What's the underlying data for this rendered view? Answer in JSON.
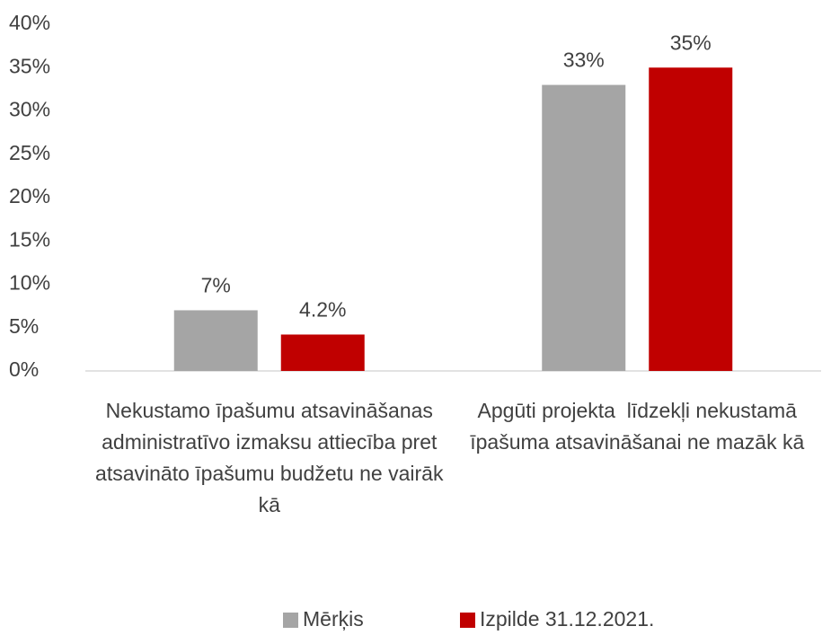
{
  "chart_data": {
    "type": "bar",
    "categories": [
      "Nekustamo īpašumu atsavināšanas administratīvo izmaksu attiecība pret atsavināto īpašumu budžetu ne vairāk kā",
      "Apgūti projekta  līdzekļi nekustamā īpašuma atsavināšanai ne mazāk kā"
    ],
    "series": [
      {
        "name": "Mērķis",
        "color": "#a5a5a5",
        "values": [
          7,
          33
        ],
        "value_labels": [
          "7%",
          "33%"
        ]
      },
      {
        "name": "Izpilde 31.12.2021.",
        "color": "#c00000",
        "values": [
          4.2,
          35
        ],
        "value_labels": [
          "4.2%",
          "35%"
        ]
      }
    ],
    "ylim": [
      0,
      40
    ],
    "yticks": [
      {
        "value": 0,
        "label": "0%"
      },
      {
        "value": 5,
        "label": "5%"
      },
      {
        "value": 10,
        "label": "10%"
      },
      {
        "value": 15,
        "label": "15%"
      },
      {
        "value": 20,
        "label": "20%"
      },
      {
        "value": 25,
        "label": "25%"
      },
      {
        "value": 30,
        "label": "30%"
      },
      {
        "value": 35,
        "label": "35%"
      },
      {
        "value": 40,
        "label": "40%"
      }
    ],
    "grid": false,
    "legend": "bottom"
  }
}
